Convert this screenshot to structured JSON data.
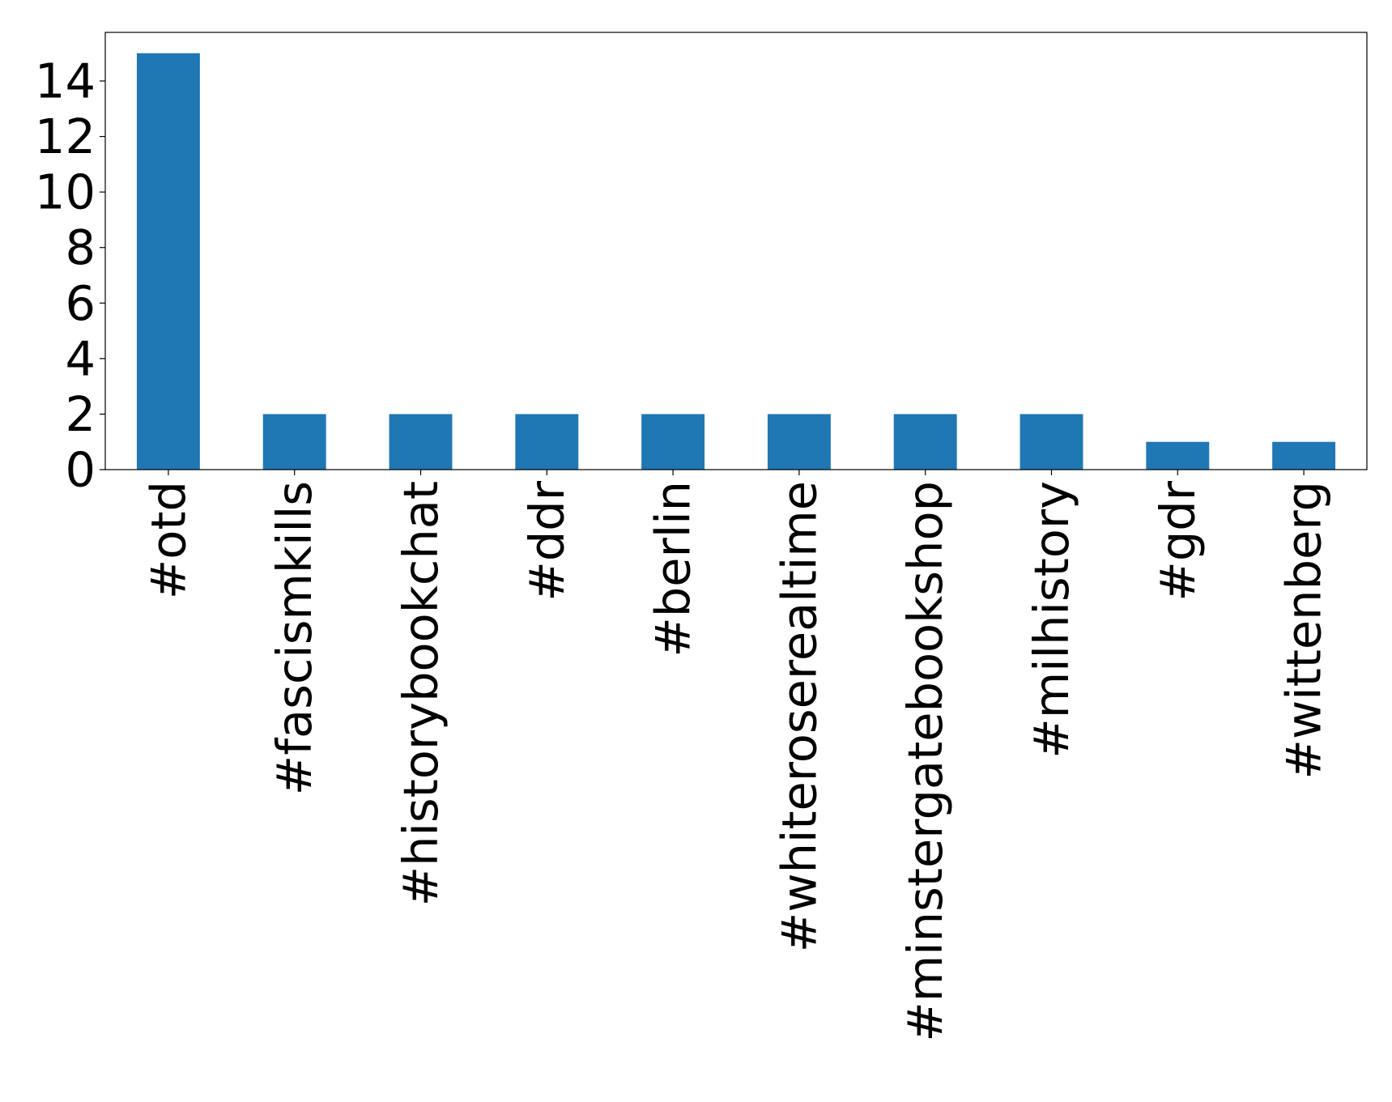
{
  "chart_data": {
    "type": "bar",
    "title": "",
    "xlabel": "",
    "ylabel": "",
    "categories": [
      "#otd",
      "#fascismkills",
      "#historybookchat",
      "#ddr",
      "#berlin",
      "#whiteroserealtime",
      "#minstergatebookshop",
      "#milhistory",
      "#gdr",
      "#wittenberg"
    ],
    "values": [
      15,
      2,
      2,
      2,
      2,
      2,
      2,
      2,
      1,
      1
    ],
    "ylim": [
      0,
      15.75
    ],
    "yticks": [
      0,
      2,
      4,
      6,
      8,
      10,
      12,
      14
    ],
    "grid": false,
    "legend": "none",
    "bar_color": "#1f77b4"
  }
}
